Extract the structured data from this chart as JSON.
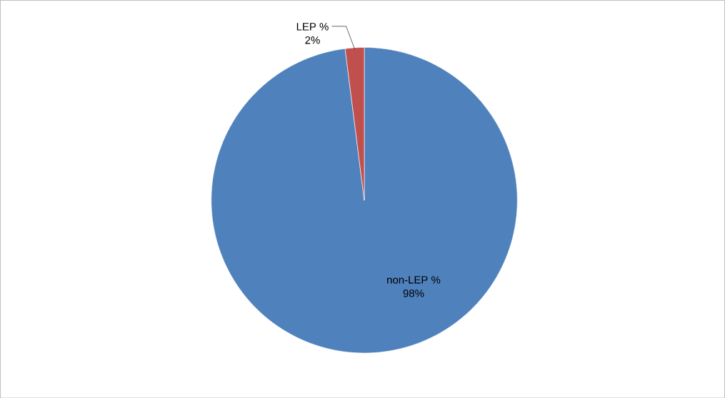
{
  "chart_data": {
    "type": "pie",
    "categories": [
      "non-LEP %",
      "LEP %"
    ],
    "values": [
      98,
      2
    ],
    "colors": [
      "#4f81bd",
      "#c0504d"
    ],
    "value_labels": [
      "98%",
      "2%"
    ]
  }
}
